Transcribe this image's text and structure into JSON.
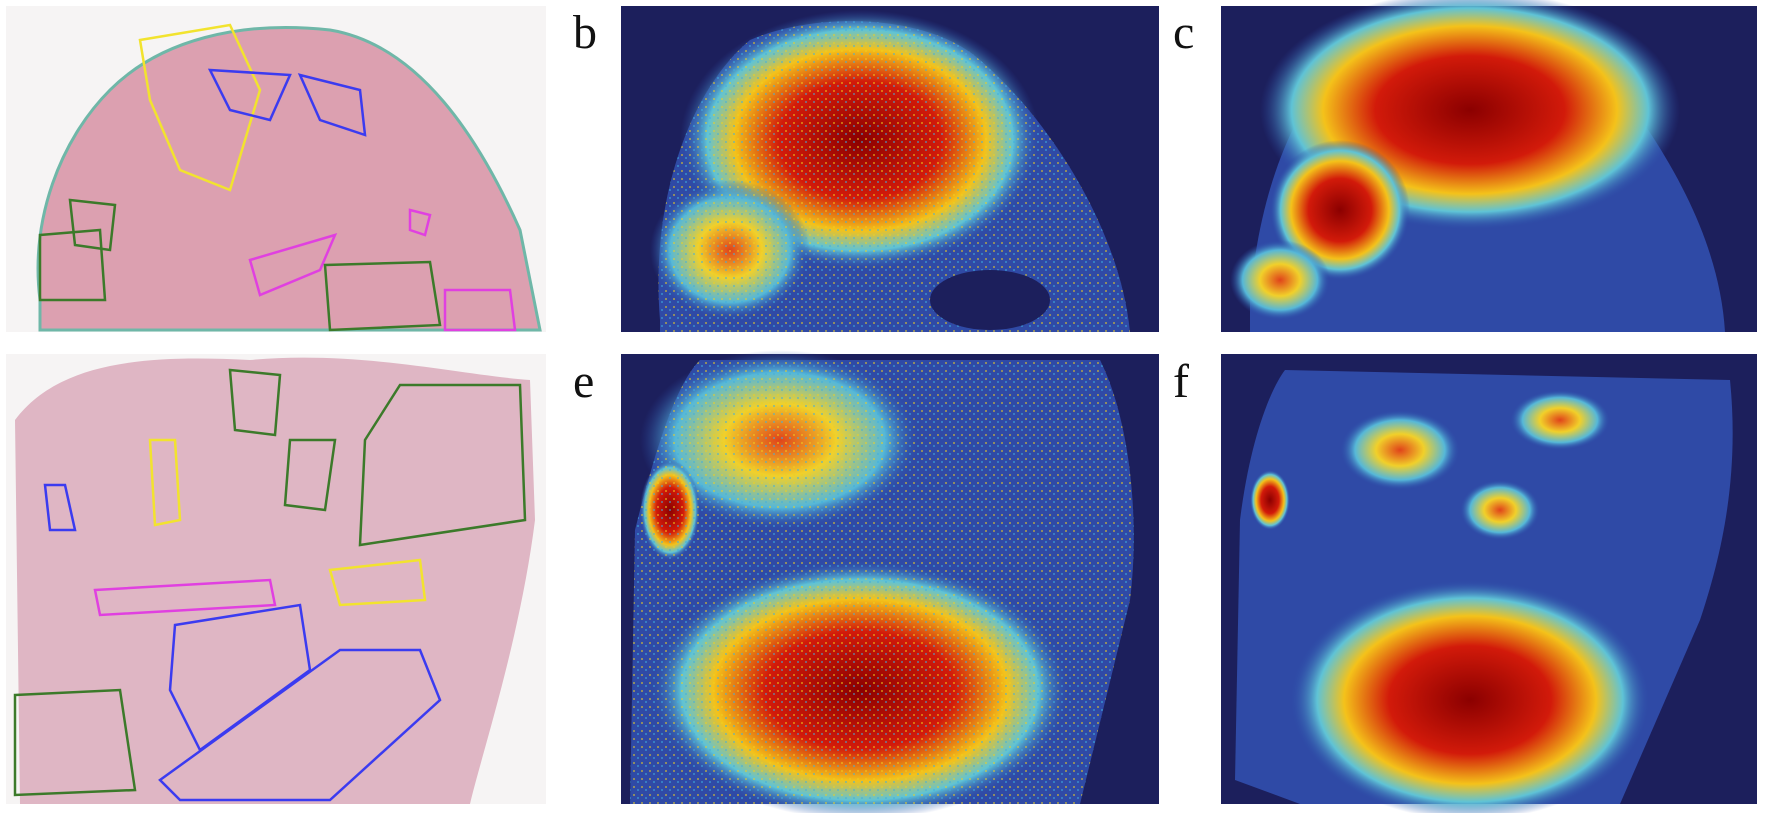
{
  "labels": [
    "b",
    "c",
    "e",
    "f"
  ]
}
